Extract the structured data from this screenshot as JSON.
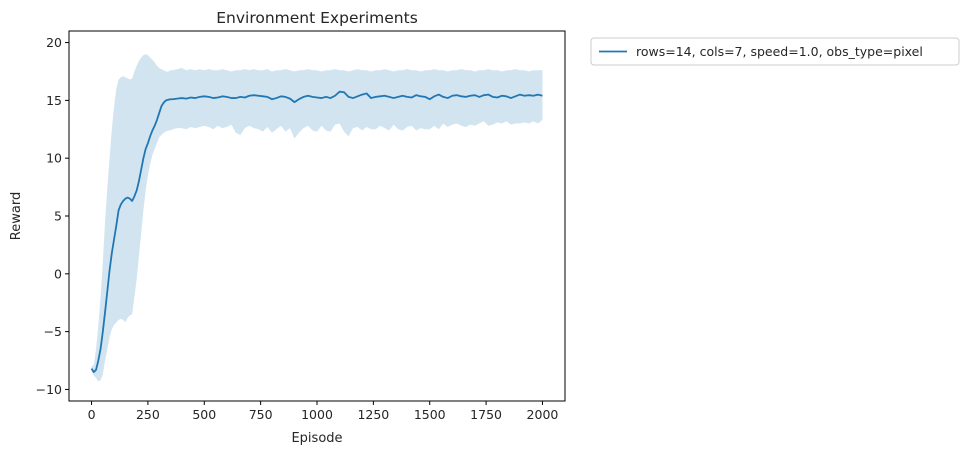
{
  "chart_data": {
    "type": "line",
    "title": "Environment Experiments",
    "xlabel": "Episode",
    "ylabel": "Reward",
    "xlim": [
      -100,
      2100
    ],
    "ylim": [
      -11,
      21
    ],
    "xticks": [
      0,
      250,
      500,
      750,
      1000,
      1250,
      1500,
      1750,
      2000
    ],
    "yticks": [
      -10,
      -5,
      0,
      5,
      10,
      15,
      20
    ],
    "xtick_labels": [
      "0",
      "250",
      "500",
      "750",
      "1000",
      "1250",
      "1500",
      "1750",
      "2000"
    ],
    "ytick_labels": [
      "−10",
      "−5",
      "0",
      "5",
      "10",
      "15",
      "20"
    ],
    "grid": false,
    "legend_position": "outside-top-right",
    "series": [
      {
        "name": "rows=14, cols=7, speed=1.0, obs_type=pixel",
        "color": "#1f77b4",
        "band_color": "#1f77b4",
        "band_opacity": 0.2,
        "x": [
          0,
          10,
          20,
          30,
          40,
          50,
          60,
          70,
          80,
          90,
          100,
          110,
          120,
          130,
          140,
          150,
          160,
          170,
          180,
          190,
          200,
          210,
          220,
          230,
          240,
          250,
          260,
          270,
          280,
          290,
          300,
          310,
          320,
          330,
          340,
          350,
          360,
          380,
          400,
          420,
          440,
          460,
          480,
          500,
          520,
          540,
          560,
          580,
          600,
          620,
          640,
          660,
          680,
          700,
          720,
          740,
          760,
          780,
          800,
          820,
          840,
          860,
          880,
          900,
          920,
          940,
          960,
          980,
          1000,
          1020,
          1040,
          1060,
          1080,
          1100,
          1120,
          1140,
          1160,
          1180,
          1200,
          1220,
          1240,
          1260,
          1280,
          1300,
          1320,
          1340,
          1360,
          1380,
          1400,
          1420,
          1440,
          1460,
          1480,
          1500,
          1520,
          1540,
          1560,
          1580,
          1600,
          1620,
          1640,
          1660,
          1680,
          1700,
          1720,
          1740,
          1760,
          1780,
          1800,
          1820,
          1840,
          1860,
          1880,
          1900,
          1920,
          1940,
          1960,
          1980,
          2000
        ],
        "mean": [
          -8.2,
          -8.5,
          -8.3,
          -7.5,
          -6.5,
          -5.0,
          -3.3,
          -1.5,
          0.3,
          1.8,
          3.0,
          4.2,
          5.5,
          6.0,
          6.3,
          6.5,
          6.6,
          6.5,
          6.3,
          6.7,
          7.2,
          8.0,
          9.0,
          10.0,
          10.8,
          11.3,
          11.9,
          12.4,
          12.8,
          13.3,
          13.9,
          14.5,
          14.8,
          15.0,
          15.05,
          15.1,
          15.1,
          15.15,
          15.2,
          15.15,
          15.25,
          15.2,
          15.3,
          15.35,
          15.3,
          15.2,
          15.25,
          15.35,
          15.3,
          15.2,
          15.2,
          15.3,
          15.25,
          15.4,
          15.45,
          15.4,
          15.35,
          15.3,
          15.1,
          15.2,
          15.35,
          15.3,
          15.15,
          14.85,
          15.1,
          15.3,
          15.4,
          15.3,
          15.25,
          15.2,
          15.3,
          15.2,
          15.4,
          15.75,
          15.7,
          15.3,
          15.2,
          15.35,
          15.5,
          15.6,
          15.2,
          15.3,
          15.35,
          15.4,
          15.3,
          15.2,
          15.3,
          15.4,
          15.3,
          15.25,
          15.45,
          15.35,
          15.3,
          15.1,
          15.35,
          15.5,
          15.3,
          15.2,
          15.4,
          15.45,
          15.35,
          15.3,
          15.4,
          15.45,
          15.3,
          15.45,
          15.5,
          15.3,
          15.25,
          15.4,
          15.35,
          15.2,
          15.35,
          15.5,
          15.4,
          15.45,
          15.4,
          15.5,
          15.4
        ],
        "lower": [
          -8.4,
          -8.8,
          -9.0,
          -9.3,
          -9.2,
          -8.7,
          -7.5,
          -6.5,
          -5.5,
          -4.8,
          -4.4,
          -4.2,
          -4.0,
          -3.9,
          -4.0,
          -4.2,
          -3.8,
          -3.6,
          -3.5,
          -2.0,
          -0.5,
          1.5,
          3.5,
          5.5,
          7.2,
          8.5,
          9.5,
          10.3,
          10.8,
          11.3,
          11.8,
          12.0,
          12.2,
          12.3,
          12.4,
          12.4,
          12.5,
          12.6,
          12.6,
          12.5,
          12.7,
          12.6,
          12.7,
          12.8,
          12.7,
          12.5,
          12.8,
          12.6,
          12.7,
          12.9,
          12.2,
          12.0,
          12.6,
          12.8,
          12.6,
          12.5,
          12.3,
          12.7,
          12.2,
          12.5,
          12.8,
          12.3,
          12.6,
          11.7,
          12.2,
          12.6,
          12.8,
          12.4,
          12.3,
          12.8,
          12.4,
          12.3,
          12.9,
          13.0,
          12.3,
          11.9,
          12.6,
          12.7,
          12.4,
          12.7,
          12.5,
          12.5,
          12.8,
          12.6,
          12.4,
          12.9,
          12.5,
          12.4,
          12.7,
          12.8,
          12.4,
          12.6,
          12.5,
          12.5,
          12.8,
          12.5,
          13.0,
          12.7,
          12.9,
          13.0,
          12.8,
          12.7,
          12.9,
          12.8,
          13.0,
          13.2,
          12.8,
          12.9,
          13.1,
          13.0,
          13.2,
          12.9,
          13.0,
          13.0,
          13.1,
          13.0,
          13.2,
          13.0,
          13.3
        ],
        "upper": [
          -8.0,
          -7.9,
          -6.5,
          -4.5,
          -2.0,
          1.0,
          4.5,
          7.5,
          10.0,
          12.5,
          14.5,
          16.0,
          16.8,
          17.0,
          17.1,
          17.0,
          16.9,
          16.8,
          16.9,
          17.5,
          18.0,
          18.4,
          18.7,
          18.9,
          19.0,
          18.9,
          18.7,
          18.5,
          18.3,
          18.0,
          17.8,
          17.7,
          17.6,
          17.5,
          17.5,
          17.6,
          17.6,
          17.7,
          17.8,
          17.6,
          17.7,
          17.6,
          17.7,
          17.6,
          17.7,
          17.6,
          17.6,
          17.7,
          17.6,
          17.5,
          17.6,
          17.6,
          17.7,
          17.6,
          17.7,
          17.6,
          17.6,
          17.7,
          17.5,
          17.6,
          17.6,
          17.7,
          17.6,
          17.5,
          17.6,
          17.6,
          17.7,
          17.6,
          17.6,
          17.5,
          17.6,
          17.6,
          17.7,
          17.6,
          17.6,
          17.5,
          17.6,
          17.7,
          17.6,
          17.6,
          17.5,
          17.6,
          17.6,
          17.7,
          17.6,
          17.5,
          17.6,
          17.6,
          17.7,
          17.6,
          17.6,
          17.5,
          17.6,
          17.6,
          17.7,
          17.6,
          17.6,
          17.5,
          17.6,
          17.6,
          17.7,
          17.6,
          17.6,
          17.5,
          17.6,
          17.6,
          17.7,
          17.6,
          17.6,
          17.5,
          17.6,
          17.6,
          17.7,
          17.6,
          17.6,
          17.5,
          17.6,
          17.6,
          17.6
        ]
      }
    ]
  }
}
